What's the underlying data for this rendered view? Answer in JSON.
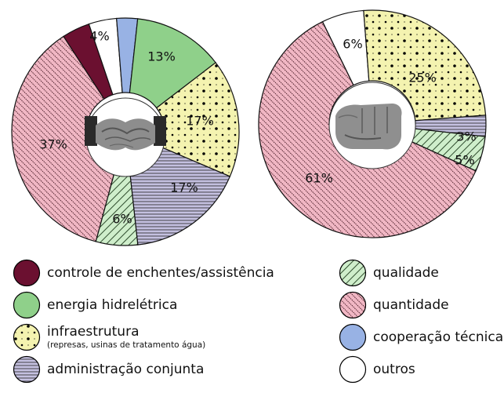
{
  "chart_data": [
    {
      "type": "pie",
      "slices": [
        {
          "category": "controle de enchentes/assistência",
          "value": 4,
          "label": ""
        },
        {
          "category": "outros",
          "value": 4,
          "label": "4%"
        },
        {
          "category": "cooperação técnica",
          "value": 3,
          "label": ""
        },
        {
          "category": "energia hidrelétrica",
          "value": 13,
          "label": "13%"
        },
        {
          "category": "infraestrutura",
          "value": 17,
          "label": "17%"
        },
        {
          "category": "administração conjunta",
          "value": 17,
          "label": "17%"
        },
        {
          "category": "qualidade",
          "value": 6,
          "label": "6%"
        },
        {
          "category": "quantidade",
          "value": 37,
          "label": "37%"
        }
      ],
      "center_image": "handshake"
    },
    {
      "type": "pie",
      "slices": [
        {
          "category": "outros",
          "value": 6,
          "label": "6%"
        },
        {
          "category": "infraestrutura",
          "value": 25,
          "label": "25%"
        },
        {
          "category": "administração conjunta",
          "value": 3,
          "label": "3%"
        },
        {
          "category": "qualidade",
          "value": 5,
          "label": "5%"
        },
        {
          "category": "quantidade",
          "value": 61,
          "label": "61%"
        }
      ],
      "center_image": "fist"
    }
  ],
  "legend": {
    "items": [
      {
        "key": "controle",
        "label": "controle de enchentes/assistência",
        "sublabel": ""
      },
      {
        "key": "energia",
        "label": "energia hidrelétrica",
        "sublabel": ""
      },
      {
        "key": "infra",
        "label": "infraestrutura",
        "sublabel": "(represas, usinas de tratamento água)"
      },
      {
        "key": "admin",
        "label": "administração conjunta",
        "sublabel": ""
      },
      {
        "key": "qualidade",
        "label": "qualidade",
        "sublabel": ""
      },
      {
        "key": "quantidade",
        "label": "quantidade",
        "sublabel": ""
      },
      {
        "key": "cooperacao",
        "label": "cooperação técnica",
        "sublabel": ""
      },
      {
        "key": "outros",
        "label": "outros",
        "sublabel": ""
      }
    ]
  },
  "colors": {
    "controle": "#6b1030",
    "energia": "#8fd08a",
    "infra": "#f4f3b0",
    "admin": "#c4c0e0",
    "qualidade": "#cfeecb",
    "quantidade": "#f1b7c4",
    "cooperacao": "#98b2e4",
    "outros": "#ffffff"
  }
}
